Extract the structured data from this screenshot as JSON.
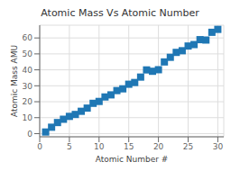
{
  "chart_data": {
    "type": "scatter",
    "title": "Atomic Mass Vs Atomic Number",
    "x_label": "Atomic Number #",
    "y_label": "Atomic Mass AMU",
    "x": [
      1,
      2,
      3,
      4,
      5,
      6,
      7,
      8,
      9,
      10,
      11,
      12,
      13,
      14,
      15,
      16,
      17,
      18,
      19,
      20,
      21,
      22,
      23,
      24,
      25,
      26,
      27,
      28,
      29,
      30
    ],
    "values": [
      1.008,
      4.003,
      6.941,
      9.012,
      10.811,
      12.011,
      14.007,
      15.999,
      18.998,
      20.18,
      22.99,
      24.305,
      26.982,
      28.086,
      30.974,
      32.065,
      35.453,
      39.948,
      39.098,
      40.078,
      44.956,
      47.867,
      50.942,
      51.996,
      54.938,
      55.845,
      58.933,
      58.693,
      63.546,
      65.38
    ],
    "color": "#1F77B4",
    "marker": "square",
    "xlim": [
      0,
      31
    ],
    "ylim": [
      -2,
      68
    ],
    "xticks": [
      0,
      5,
      10,
      15,
      20,
      25,
      30
    ],
    "yticks": [
      0,
      10,
      20,
      30,
      40,
      50,
      60
    ],
    "grid": true
  }
}
